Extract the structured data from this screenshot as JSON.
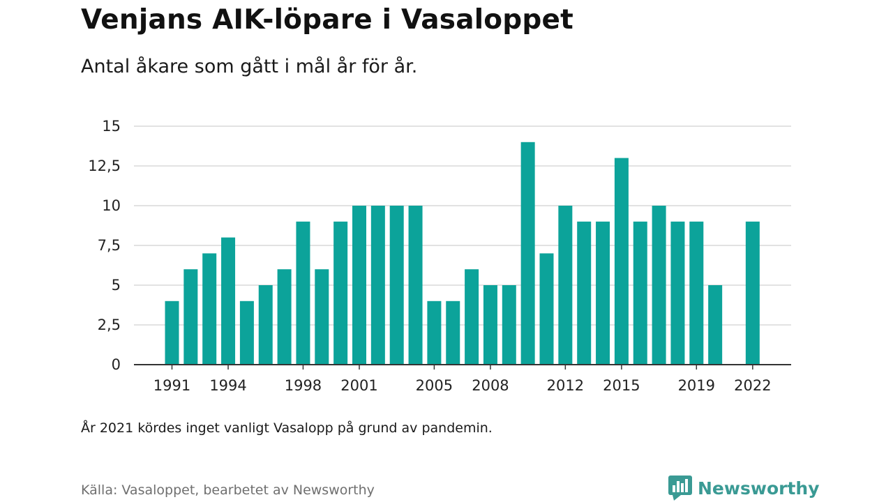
{
  "header": {
    "title": "Venjans AIK-löpare i Vasaloppet",
    "subtitle": "Antal åkare som gått i mål år för år."
  },
  "footer": {
    "note": "År 2021 kördes inget vanligt Vasalopp på grund av pandemin.",
    "source": "Källa: Vasaloppet, bearbetet av Newsworthy",
    "brand": "Newsworthy",
    "brand_icon": "newsworthy-logo-icon"
  },
  "colors": {
    "bar": "#0ca39a",
    "grid": "#d9d9d9",
    "axis": "#333333",
    "brand": "#3a9a94"
  },
  "chart_data": {
    "type": "bar",
    "title": "Venjans AIK-löpare i Vasaloppet",
    "subtitle": "Antal åkare som gått i mål år för år.",
    "xlabel": "",
    "ylabel": "",
    "categories": [
      1991,
      1992,
      1993,
      1994,
      1995,
      1996,
      1997,
      1998,
      1999,
      2000,
      2001,
      2002,
      2003,
      2004,
      2005,
      2006,
      2007,
      2008,
      2009,
      2010,
      2011,
      2012,
      2013,
      2014,
      2015,
      2016,
      2017,
      2018,
      2019,
      2020,
      2021,
      2022
    ],
    "values": [
      4,
      6,
      7,
      8,
      4,
      5,
      6,
      9,
      6,
      9,
      10,
      10,
      10,
      10,
      4,
      4,
      6,
      5,
      5,
      14,
      7,
      10,
      9,
      9,
      13,
      9,
      10,
      9,
      9,
      5,
      null,
      9
    ],
    "x_tick_labels": [
      "1991",
      "1994",
      "1998",
      "2001",
      "2005",
      "2008",
      "2012",
      "2015",
      "2019",
      "2022"
    ],
    "y_ticks": [
      0,
      2.5,
      5,
      7.5,
      10,
      12.5,
      15
    ],
    "y_tick_labels": [
      "0",
      "2,5",
      "5",
      "7,5",
      "10",
      "12,5",
      "15"
    ],
    "ylim": [
      0,
      15
    ],
    "grid": true,
    "legend": "none"
  }
}
